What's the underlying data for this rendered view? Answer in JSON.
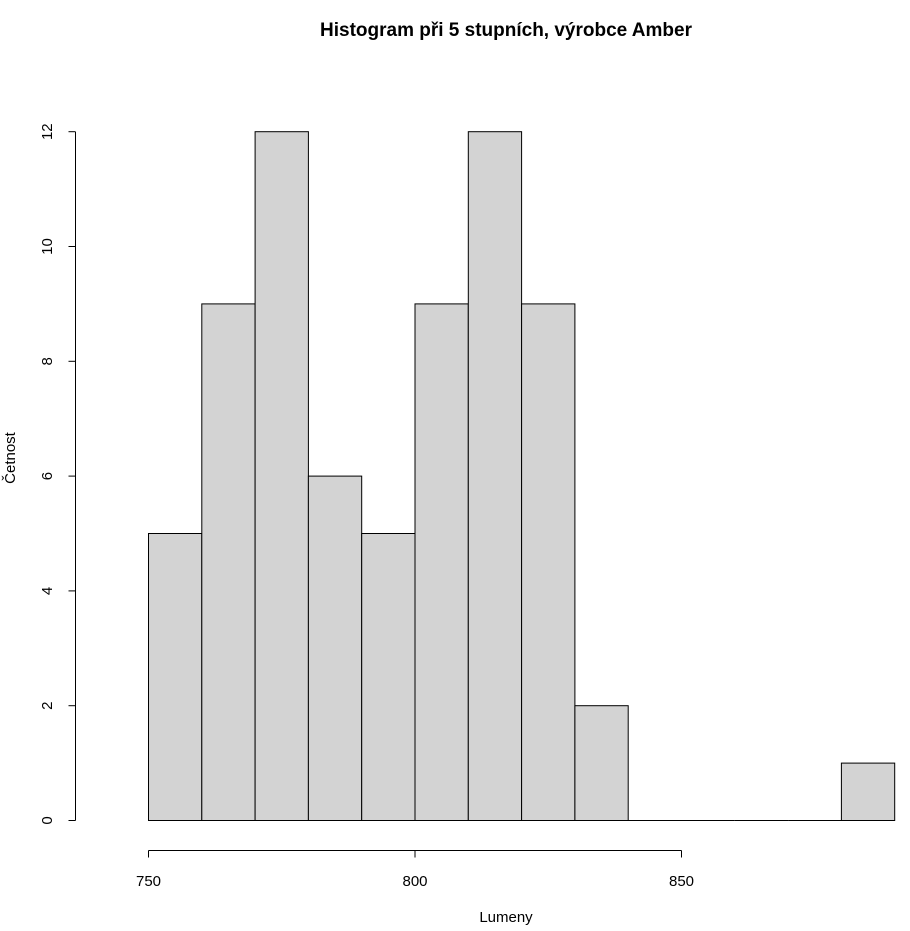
{
  "chart_data": {
    "type": "bar",
    "title": "Histogram při 5 stupních, výrobce Amber",
    "xlabel": "Lumeny",
    "ylabel": "Četnost",
    "bins": [
      {
        "from": 750,
        "to": 760,
        "count": 5
      },
      {
        "from": 760,
        "to": 770,
        "count": 9
      },
      {
        "from": 770,
        "to": 780,
        "count": 12
      },
      {
        "from": 780,
        "to": 790,
        "count": 6
      },
      {
        "from": 790,
        "to": 800,
        "count": 5
      },
      {
        "from": 800,
        "to": 810,
        "count": 9
      },
      {
        "from": 810,
        "to": 820,
        "count": 12
      },
      {
        "from": 820,
        "to": 830,
        "count": 9
      },
      {
        "from": 830,
        "to": 840,
        "count": 2
      },
      {
        "from": 840,
        "to": 850,
        "count": 0
      },
      {
        "from": 850,
        "to": 860,
        "count": 0
      },
      {
        "from": 860,
        "to": 870,
        "count": 0
      },
      {
        "from": 870,
        "to": 880,
        "count": 0
      },
      {
        "from": 880,
        "to": 890,
        "count": 1
      }
    ],
    "x_ticks": [
      "750",
      "800",
      "850"
    ],
    "y_ticks": [
      "0",
      "2",
      "4",
      "6",
      "8",
      "10",
      "12"
    ],
    "xlim": [
      750,
      890
    ],
    "ylim": [
      0,
      12
    ],
    "grid": false,
    "bar_color": "#d3d3d3",
    "border_color": "#000000"
  }
}
